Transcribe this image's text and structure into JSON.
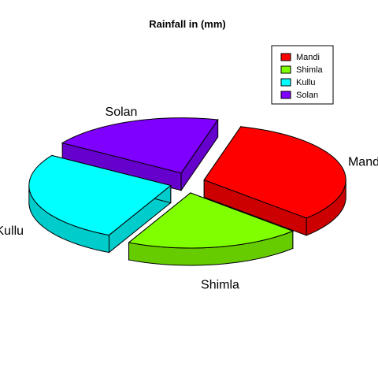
{
  "chart_data": {
    "type": "pie",
    "title": "Rainfall in (mm)",
    "categories": [
      "Mandi",
      "Shimla",
      "Kullu",
      "Solan"
    ],
    "values": [
      33,
      20,
      27,
      20
    ],
    "colors": [
      "#ff0000",
      "#80ff00",
      "#00ffff",
      "#8000ff"
    ],
    "side_colors": [
      "#cc0000",
      "#66cc00",
      "#00cccc",
      "#6600cc"
    ],
    "exploded": true,
    "three_d": true,
    "legend": {
      "position": "top-right",
      "entries": [
        "Mandi",
        "Shimla",
        "Kullu",
        "Solan"
      ]
    }
  }
}
